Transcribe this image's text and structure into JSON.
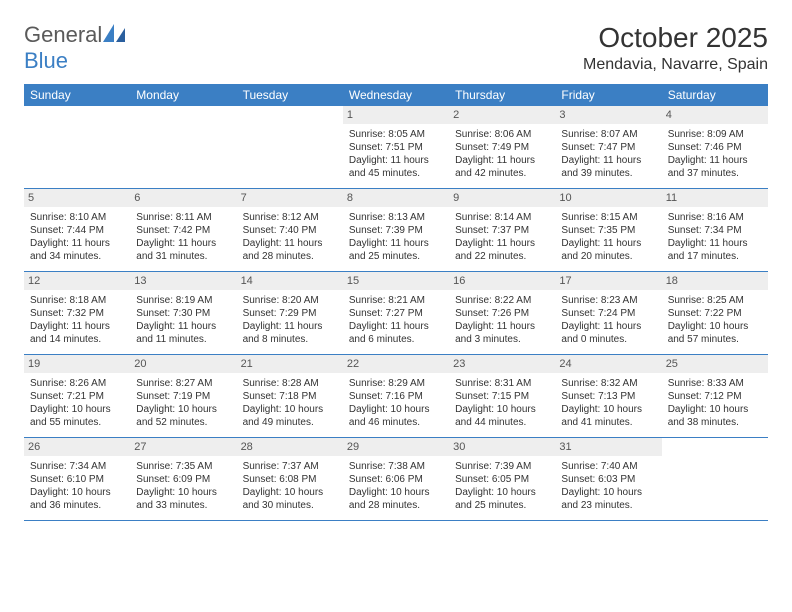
{
  "logo": {
    "part1": "General",
    "part2": "Blue"
  },
  "title": "October 2025",
  "location": "Mendavia, Navarre, Spain",
  "colors": {
    "header_bg": "#3b7fc4",
    "header_text": "#ffffff",
    "daynum_bg": "#eeeeee",
    "text": "#333333",
    "logo_gray": "#5a5a5a",
    "logo_blue": "#3b7fc4"
  },
  "day_headers": [
    "Sunday",
    "Monday",
    "Tuesday",
    "Wednesday",
    "Thursday",
    "Friday",
    "Saturday"
  ],
  "weeks": [
    [
      {
        "n": "",
        "empty": true
      },
      {
        "n": "",
        "empty": true
      },
      {
        "n": "",
        "empty": true
      },
      {
        "n": "1",
        "sr": "8:05 AM",
        "ss": "7:51 PM",
        "dl": "11 hours and 45 minutes."
      },
      {
        "n": "2",
        "sr": "8:06 AM",
        "ss": "7:49 PM",
        "dl": "11 hours and 42 minutes."
      },
      {
        "n": "3",
        "sr": "8:07 AM",
        "ss": "7:47 PM",
        "dl": "11 hours and 39 minutes."
      },
      {
        "n": "4",
        "sr": "8:09 AM",
        "ss": "7:46 PM",
        "dl": "11 hours and 37 minutes."
      }
    ],
    [
      {
        "n": "5",
        "sr": "8:10 AM",
        "ss": "7:44 PM",
        "dl": "11 hours and 34 minutes."
      },
      {
        "n": "6",
        "sr": "8:11 AM",
        "ss": "7:42 PM",
        "dl": "11 hours and 31 minutes."
      },
      {
        "n": "7",
        "sr": "8:12 AM",
        "ss": "7:40 PM",
        "dl": "11 hours and 28 minutes."
      },
      {
        "n": "8",
        "sr": "8:13 AM",
        "ss": "7:39 PM",
        "dl": "11 hours and 25 minutes."
      },
      {
        "n": "9",
        "sr": "8:14 AM",
        "ss": "7:37 PM",
        "dl": "11 hours and 22 minutes."
      },
      {
        "n": "10",
        "sr": "8:15 AM",
        "ss": "7:35 PM",
        "dl": "11 hours and 20 minutes."
      },
      {
        "n": "11",
        "sr": "8:16 AM",
        "ss": "7:34 PM",
        "dl": "11 hours and 17 minutes."
      }
    ],
    [
      {
        "n": "12",
        "sr": "8:18 AM",
        "ss": "7:32 PM",
        "dl": "11 hours and 14 minutes."
      },
      {
        "n": "13",
        "sr": "8:19 AM",
        "ss": "7:30 PM",
        "dl": "11 hours and 11 minutes."
      },
      {
        "n": "14",
        "sr": "8:20 AM",
        "ss": "7:29 PM",
        "dl": "11 hours and 8 minutes."
      },
      {
        "n": "15",
        "sr": "8:21 AM",
        "ss": "7:27 PM",
        "dl": "11 hours and 6 minutes."
      },
      {
        "n": "16",
        "sr": "8:22 AM",
        "ss": "7:26 PM",
        "dl": "11 hours and 3 minutes."
      },
      {
        "n": "17",
        "sr": "8:23 AM",
        "ss": "7:24 PM",
        "dl": "11 hours and 0 minutes."
      },
      {
        "n": "18",
        "sr": "8:25 AM",
        "ss": "7:22 PM",
        "dl": "10 hours and 57 minutes."
      }
    ],
    [
      {
        "n": "19",
        "sr": "8:26 AM",
        "ss": "7:21 PM",
        "dl": "10 hours and 55 minutes."
      },
      {
        "n": "20",
        "sr": "8:27 AM",
        "ss": "7:19 PM",
        "dl": "10 hours and 52 minutes."
      },
      {
        "n": "21",
        "sr": "8:28 AM",
        "ss": "7:18 PM",
        "dl": "10 hours and 49 minutes."
      },
      {
        "n": "22",
        "sr": "8:29 AM",
        "ss": "7:16 PM",
        "dl": "10 hours and 46 minutes."
      },
      {
        "n": "23",
        "sr": "8:31 AM",
        "ss": "7:15 PM",
        "dl": "10 hours and 44 minutes."
      },
      {
        "n": "24",
        "sr": "8:32 AM",
        "ss": "7:13 PM",
        "dl": "10 hours and 41 minutes."
      },
      {
        "n": "25",
        "sr": "8:33 AM",
        "ss": "7:12 PM",
        "dl": "10 hours and 38 minutes."
      }
    ],
    [
      {
        "n": "26",
        "sr": "7:34 AM",
        "ss": "6:10 PM",
        "dl": "10 hours and 36 minutes."
      },
      {
        "n": "27",
        "sr": "7:35 AM",
        "ss": "6:09 PM",
        "dl": "10 hours and 33 minutes."
      },
      {
        "n": "28",
        "sr": "7:37 AM",
        "ss": "6:08 PM",
        "dl": "10 hours and 30 minutes."
      },
      {
        "n": "29",
        "sr": "7:38 AM",
        "ss": "6:06 PM",
        "dl": "10 hours and 28 minutes."
      },
      {
        "n": "30",
        "sr": "7:39 AM",
        "ss": "6:05 PM",
        "dl": "10 hours and 25 minutes."
      },
      {
        "n": "31",
        "sr": "7:40 AM",
        "ss": "6:03 PM",
        "dl": "10 hours and 23 minutes."
      },
      {
        "n": "",
        "empty": true
      }
    ]
  ],
  "labels": {
    "sunrise": "Sunrise:",
    "sunset": "Sunset:",
    "daylight": "Daylight:"
  }
}
